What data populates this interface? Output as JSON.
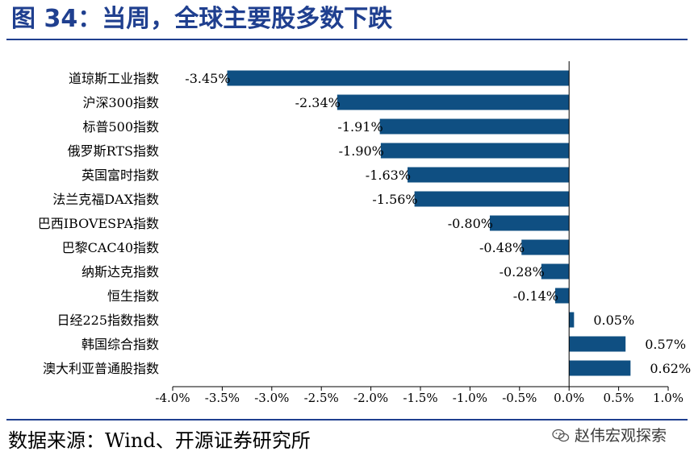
{
  "title": "图 34：当周，全球主要股多数下跌",
  "source": "数据来源：Wind、开源证券研究所",
  "watermark": {
    "text": "赵伟宏观探索",
    "icon": "wechat-icon"
  },
  "colors": {
    "bar": "#0f4f82",
    "title": "#1f3f8f",
    "rule": "#1f3f8f"
  },
  "chart_data": {
    "type": "bar",
    "orientation": "horizontal",
    "categories": [
      "道琼斯工业指数",
      "沪深300指数",
      "标普500指数",
      "俄罗斯RTS指数",
      "英国富时指数",
      "法兰克福DAX指数",
      "巴西IBOVESPA指数",
      "巴黎CAC40指数",
      "纳斯达克指数",
      "恒生指数",
      "日经225指数指数",
      "韩国综合指数",
      "澳大利亚普通股指数"
    ],
    "values": [
      -3.45,
      -2.34,
      -1.91,
      -1.9,
      -1.63,
      -1.56,
      -0.8,
      -0.48,
      -0.28,
      -0.14,
      0.05,
      0.57,
      0.62
    ],
    "data_labels": [
      "-3.45%",
      "-2.34%",
      "-1.91%",
      "-1.90%",
      "-1.63%",
      "-1.56%",
      "-0.80%",
      "-0.48%",
      "-0.28%",
      "-0.14%",
      "0.05%",
      "0.57%",
      "0.62%"
    ],
    "xlim": [
      -4.0,
      1.0
    ],
    "xticks": [
      -4.0,
      -3.5,
      -3.0,
      -2.5,
      -2.0,
      -1.5,
      -1.0,
      -0.5,
      0.0,
      0.5,
      1.0
    ],
    "xtick_labels": [
      "-4.0%",
      "-3.5%",
      "-3.0%",
      "-2.5%",
      "-2.0%",
      "-1.5%",
      "-1.0%",
      "-0.5%",
      "0.0%",
      "0.5%",
      "1.0%"
    ],
    "grid": false,
    "legend": "none"
  }
}
